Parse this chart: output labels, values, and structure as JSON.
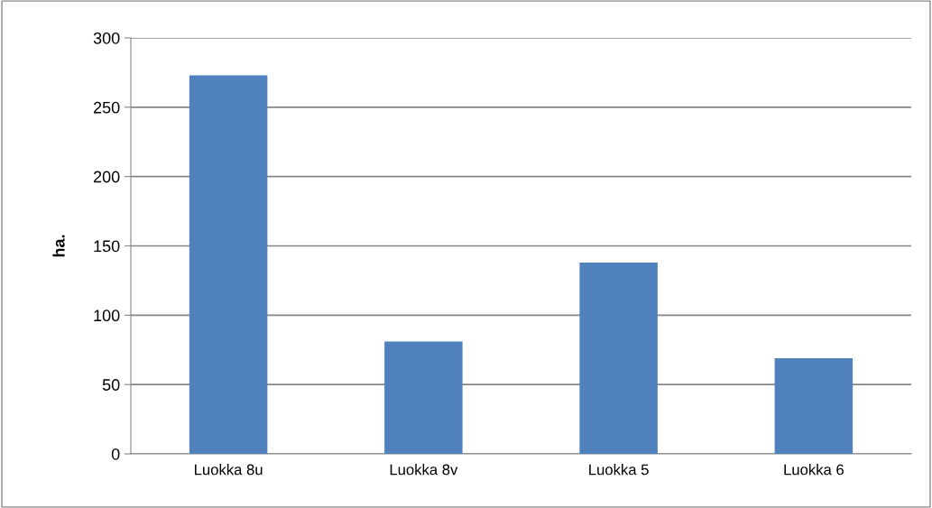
{
  "chart_data": {
    "type": "bar",
    "ylabel": "ha.",
    "categories": [
      "Luokka 8u",
      "Luokka 8v",
      "Luokka 5",
      "Luokka 6"
    ],
    "values": [
      273,
      81,
      138,
      69
    ],
    "color": "#4f81bd",
    "ylim": [
      0,
      300
    ],
    "yticks": [
      0,
      50,
      100,
      150,
      200,
      250,
      300
    ],
    "grid": "y"
  }
}
